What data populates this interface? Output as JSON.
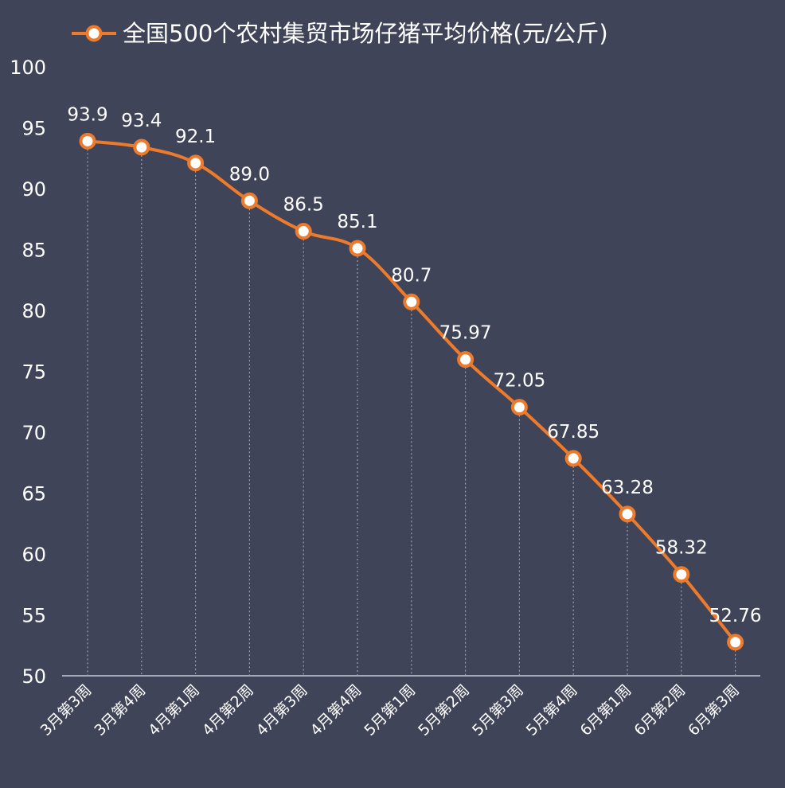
{
  "chart_data": {
    "type": "line",
    "legend": "全国500个农村集贸市场仔猪平均价格(元/公斤)",
    "legend_position": "top-center",
    "categories": [
      "3月第3周",
      "3月第4周",
      "4月第1周",
      "4月第2周",
      "4月第3周",
      "4月第4周",
      "5月第1周",
      "5月第2周",
      "5月第3周",
      "5月第4周",
      "6月第1周",
      "6月第2周",
      "6月第3周"
    ],
    "series": [
      {
        "name": "全国500个农村集贸市场仔猪平均价格(元/公斤)",
        "values": [
          93.9,
          93.4,
          92.1,
          89.0,
          86.5,
          85.1,
          80.7,
          75.97,
          72.05,
          67.85,
          63.28,
          58.32,
          52.76
        ],
        "labels": [
          "93.9",
          "93.4",
          "92.1",
          "89.0",
          "86.5",
          "85.1",
          "80.7",
          "75.97",
          "72.05",
          "67.85",
          "63.28",
          "58.32",
          "52.76"
        ]
      }
    ],
    "yticks": [
      "50",
      "55",
      "60",
      "65",
      "70",
      "75",
      "80",
      "85",
      "90",
      "95",
      "100"
    ],
    "ylim": [
      50,
      100
    ],
    "grid": false,
    "drop_lines": true,
    "colors": {
      "background": "#3f4458",
      "line": "#ee7b2c",
      "marker_fill": "#ffffff",
      "text": "#ffffff",
      "drop_line": "#9aa0b0",
      "axis": "#c8cbd6"
    }
  }
}
